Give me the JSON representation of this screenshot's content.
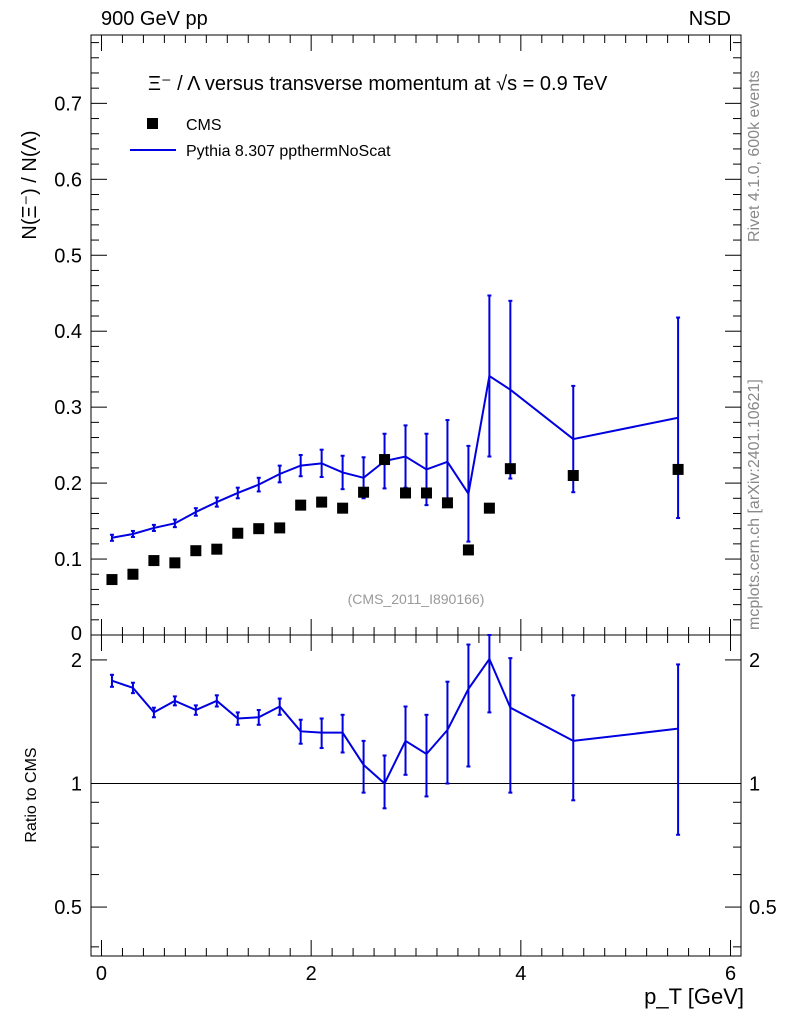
{
  "header": {
    "left": "900 GeV pp",
    "right": "NSD"
  },
  "side_labels": {
    "rivet": "Rivet 4.1.0,  600k events",
    "mcplots": "mcplots.cern.ch [arXiv:2401.10621]"
  },
  "chart_data": {
    "type": "line",
    "title": "Ξ⁻ / Λ versus transverse momentum at √s = 0.9 TeV",
    "watermark": "(CMS_2011_I890166)",
    "xlabel": "p_T [GeV]",
    "ylabel": "N(Ξ⁻)  /  N(Λ)",
    "ratio_ylabel": "Ratio to CMS",
    "xlim": [
      -0.1,
      6.1
    ],
    "ylim": [
      0,
      0.79
    ],
    "ratio_ylim": [
      0.38,
      2.3
    ],
    "x_ticks": [
      "0",
      "2",
      "4",
      "6"
    ],
    "y_ticks": [
      "0.1",
      "0.2",
      "0.3",
      "0.4",
      "0.5",
      "0.6",
      "0.7"
    ],
    "y_bottom_tick": "0",
    "ratio_ticks": [
      "0.5",
      "1",
      "2"
    ],
    "legend": [
      {
        "name": "CMS",
        "style": "marker",
        "color": "#000000"
      },
      {
        "name": "Pythia 8.307 ppthermNoScat",
        "style": "line",
        "color": "#0000e0"
      }
    ],
    "cms": {
      "name": "CMS",
      "x": [
        0.1,
        0.3,
        0.5,
        0.7,
        0.9,
        1.1,
        1.3,
        1.5,
        1.7,
        1.9,
        2.1,
        2.3,
        2.5,
        2.7,
        2.9,
        3.1,
        3.3,
        3.5,
        3.7,
        3.9,
        4.5,
        5.5
      ],
      "y": [
        0.073,
        0.08,
        0.098,
        0.095,
        0.111,
        0.113,
        0.134,
        0.14,
        0.141,
        0.171,
        0.175,
        0.167,
        0.188,
        0.231,
        0.187,
        0.187,
        0.174,
        0.112,
        0.167,
        0.219,
        0.21,
        0.218
      ]
    },
    "pythia": {
      "name": "Pythia 8.307 ppthermNoScat",
      "x": [
        0.1,
        0.3,
        0.5,
        0.7,
        0.9,
        1.1,
        1.3,
        1.5,
        1.7,
        1.9,
        2.1,
        2.3,
        2.5,
        2.7,
        2.9,
        3.1,
        3.3,
        3.5,
        3.7,
        3.9,
        4.5,
        5.5
      ],
      "y": [
        0.128,
        0.133,
        0.141,
        0.147,
        0.162,
        0.175,
        0.187,
        0.198,
        0.212,
        0.223,
        0.226,
        0.214,
        0.207,
        0.229,
        0.235,
        0.218,
        0.228,
        0.186,
        0.341,
        0.323,
        0.258,
        0.286
      ],
      "err": [
        0.004,
        0.004,
        0.004,
        0.005,
        0.005,
        0.006,
        0.007,
        0.009,
        0.011,
        0.014,
        0.018,
        0.022,
        0.027,
        0.036,
        0.041,
        0.047,
        0.055,
        0.063,
        0.106,
        0.117,
        0.07,
        0.132
      ]
    },
    "ratio": {
      "x": [
        0.1,
        0.3,
        0.5,
        0.7,
        0.9,
        1.1,
        1.3,
        1.5,
        1.7,
        1.9,
        2.1,
        2.3,
        2.5,
        2.7,
        2.9,
        3.1,
        3.3,
        3.5,
        3.7,
        3.9,
        4.5,
        5.5
      ],
      "y": [
        1.78,
        1.71,
        1.49,
        1.59,
        1.51,
        1.59,
        1.44,
        1.45,
        1.54,
        1.34,
        1.33,
        1.33,
        1.11,
        1.0,
        1.27,
        1.18,
        1.35,
        1.7,
        2.01,
        1.53,
        1.27,
        1.36
      ],
      "err_up": [
        0.06,
        0.05,
        0.04,
        0.04,
        0.04,
        0.05,
        0.05,
        0.06,
        0.07,
        0.09,
        0.11,
        0.14,
        0.16,
        0.17,
        0.27,
        0.29,
        0.42,
        0.48,
        0.38,
        0.49,
        0.37,
        0.59
      ],
      "err_dn": [
        0.06,
        0.05,
        0.04,
        0.04,
        0.04,
        0.05,
        0.05,
        0.06,
        0.07,
        0.09,
        0.11,
        0.14,
        0.16,
        0.13,
        0.22,
        0.25,
        0.35,
        0.6,
        0.52,
        0.58,
        0.36,
        0.61
      ]
    }
  }
}
